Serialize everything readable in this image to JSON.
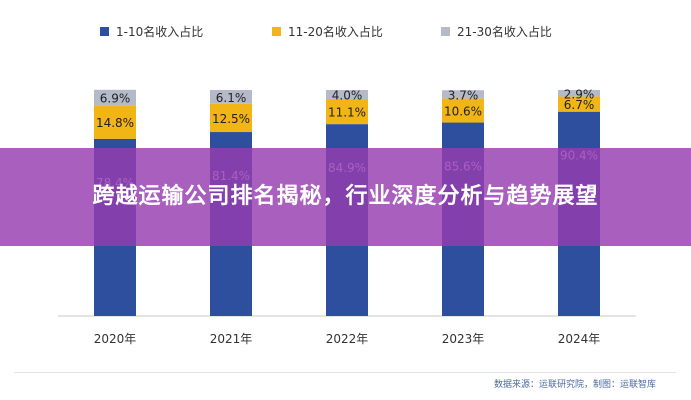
{
  "chart_data": {
    "type": "bar",
    "stacked": true,
    "categories": [
      "2020年",
      "2021年",
      "2022年",
      "2023年",
      "2024年"
    ],
    "series": [
      {
        "name": "1-10名收入占比",
        "values": [
          78.4,
          81.4,
          84.9,
          85.6,
          90.4
        ],
        "labels": [
          "78.4%",
          "81.4%",
          "84.9%",
          "85.6%",
          "90.4%"
        ]
      },
      {
        "name": "11-20名收入占比",
        "values": [
          14.8,
          12.5,
          11.1,
          10.6,
          6.7
        ],
        "labels": [
          "14.8%",
          "12.5%",
          "11.1%",
          "10.6%",
          "6.7%"
        ]
      },
      {
        "name": "21-30名收入占比",
        "values": [
          6.9,
          6.1,
          4.0,
          3.7,
          2.9
        ],
        "labels": [
          "6.9%",
          "6.1%",
          "4.0%",
          "3.7%",
          "2.9%"
        ]
      }
    ],
    "ylim": [
      0,
      100
    ],
    "legend_position": "top",
    "grid": false
  },
  "colors": {
    "s1": "#2e4f9e",
    "s2": "#f2b516",
    "s3": "#b4bac8"
  },
  "overlay": {
    "title": "跨越运输公司排名揭秘，行业深度分析与趋势展望"
  },
  "footer": {
    "source": "数据来源：运联研究院，制图：运联智库"
  }
}
